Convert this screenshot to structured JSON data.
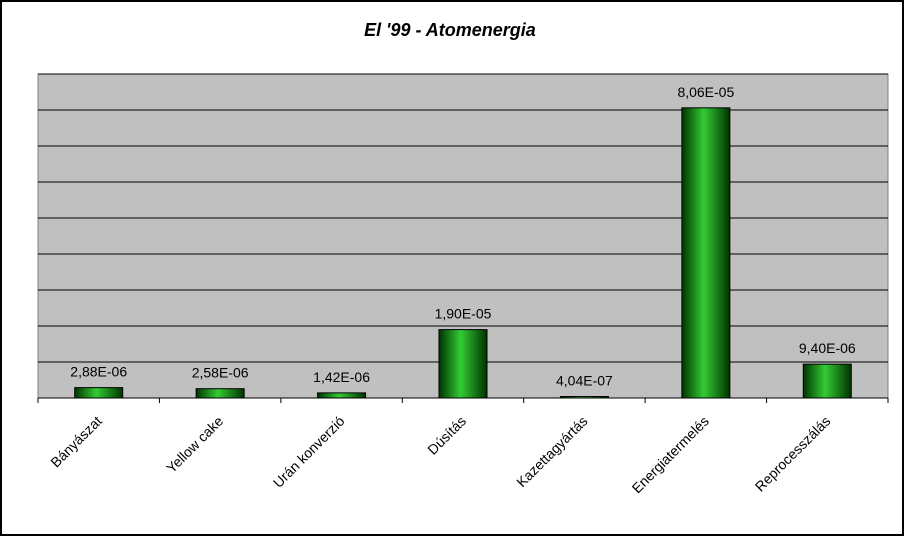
{
  "chart_data": {
    "type": "bar",
    "title": "El '99 - Atomenergia",
    "xlabel": "",
    "ylabel": "",
    "categories": [
      "Bányászat",
      "Yellow cake",
      "Urán konverzió",
      "Dúsítás",
      "Kazettagyártás",
      "Energiatermelés",
      "Reprocesszálás"
    ],
    "values": [
      2.88e-06,
      2.58e-06,
      1.42e-06,
      1.9e-05,
      4.04e-07,
      8.06e-05,
      9.4e-06
    ],
    "data_labels": [
      "2,88E-06",
      "2,58E-06",
      "1,42E-06",
      "1,90E-05",
      "4,04E-07",
      "8,06E-05",
      "9,40E-06"
    ],
    "ylim": [
      0,
      9e-05
    ],
    "grid": true,
    "legend": "none",
    "colors": {
      "bar": "#0a7a0a",
      "bar_dark": "#003300",
      "bar_light": "#33cc33",
      "plot_bg": "#c0c0c0",
      "gridline": "#000000"
    }
  }
}
